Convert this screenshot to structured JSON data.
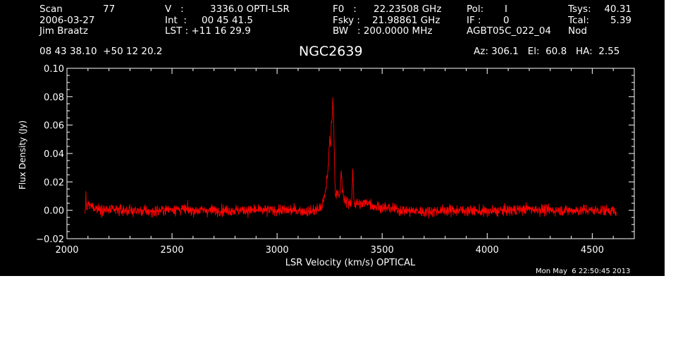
{
  "header": {
    "scan_label": "Scan",
    "scan_value": "77",
    "date": "2006-03-27",
    "observer": "Jim Braatz",
    "v_label": "V   :",
    "v_value": "3336.0 OPTI-LSR",
    "int_label": "Int  :",
    "int_value": "00 45 41.5",
    "lst_label": "LST : +11 16 29.9",
    "f0_label": "F0   :",
    "f0_value": "22.23508 GHz",
    "fsky_label": "Fsky :",
    "fsky_value": "21.98861 GHz",
    "bw_label": "BW   : 200.0000 MHz",
    "pol_label": "Pol:",
    "pol_value": "I",
    "if_label": "IF :",
    "if_value": "0",
    "project": "AGBT05C_022_04",
    "tsys_label": "Tsys:",
    "tsys_value": "40.31",
    "tcal_label": "Tcal:",
    "tcal_value": "5.39",
    "mode": "Nod",
    "coords": "08 43 38.10  +50 12 20.2",
    "object": "NGC2639",
    "azelha": "Az: 306.1   El:  60.8   HA:  2.55"
  },
  "timestamp": "Mon May  6 22:50:45 2013",
  "colors": {
    "background": "#000000",
    "axes": "#ffffff",
    "trace": "#ff0000",
    "page": "#ffffff"
  },
  "chart_data": {
    "type": "line",
    "xlabel": "LSR Velocity (km/s) OPTICAL",
    "ylabel": "Flux Density (Jy)",
    "xlim": [
      2000,
      4700
    ],
    "ylim": [
      -0.02,
      0.1
    ],
    "xticks": [
      2000,
      2500,
      3000,
      3500,
      4000,
      4500
    ],
    "xtick_labels": [
      "2000",
      "2500",
      "3000",
      "3500",
      "4000",
      "4500"
    ],
    "yticks": [
      -0.02,
      0.0,
      0.02,
      0.04,
      0.06,
      0.08,
      0.1
    ],
    "ytick_labels": [
      "−0.02",
      "0.00",
      "0.02",
      "0.04",
      "0.06",
      "0.08",
      "0.10"
    ],
    "series": [
      {
        "color": "#ff0000",
        "x": [
          2085,
          2090,
          2095,
          2100,
          2150,
          2200,
          2300,
          2400,
          2500,
          2600,
          2700,
          2800,
          2900,
          3000,
          3100,
          3150,
          3180,
          3200,
          3210,
          3220,
          3230,
          3235,
          3240,
          3245,
          3250,
          3255,
          3258,
          3262,
          3265,
          3268,
          3272,
          3275,
          3280,
          3285,
          3290,
          3295,
          3300,
          3305,
          3310,
          3315,
          3320,
          3325,
          3330,
          3335,
          3340,
          3345,
          3350,
          3355,
          3360,
          3365,
          3370,
          3380,
          3400,
          3430,
          3460,
          3500,
          3600,
          3700,
          3800,
          3900,
          4000,
          4100,
          4200,
          4300,
          4400,
          4500,
          4550,
          4600,
          4615
        ],
        "y": [
          -0.004,
          0.008,
          0.0,
          0.004,
          0.001,
          0.0,
          0.0,
          -0.001,
          0.001,
          0.0,
          0.0,
          0.0,
          0.0,
          0.0,
          0.0,
          -0.001,
          0.0,
          0.001,
          0.002,
          0.006,
          0.012,
          0.02,
          0.025,
          0.035,
          0.05,
          0.045,
          0.06,
          0.065,
          0.08,
          0.07,
          0.045,
          0.02,
          0.01,
          0.015,
          0.012,
          0.008,
          0.012,
          0.03,
          0.015,
          0.01,
          0.008,
          0.006,
          0.006,
          0.01,
          0.004,
          0.005,
          0.004,
          0.005,
          0.029,
          0.01,
          0.004,
          0.005,
          0.004,
          0.006,
          0.003,
          0.002,
          0.0,
          -0.001,
          0.0,
          0.0,
          -0.001,
          0.0,
          0.001,
          0.0,
          0.0,
          0.0,
          0.0,
          0.0,
          -0.004
        ],
        "noise_rms": 0.0035
      }
    ]
  }
}
